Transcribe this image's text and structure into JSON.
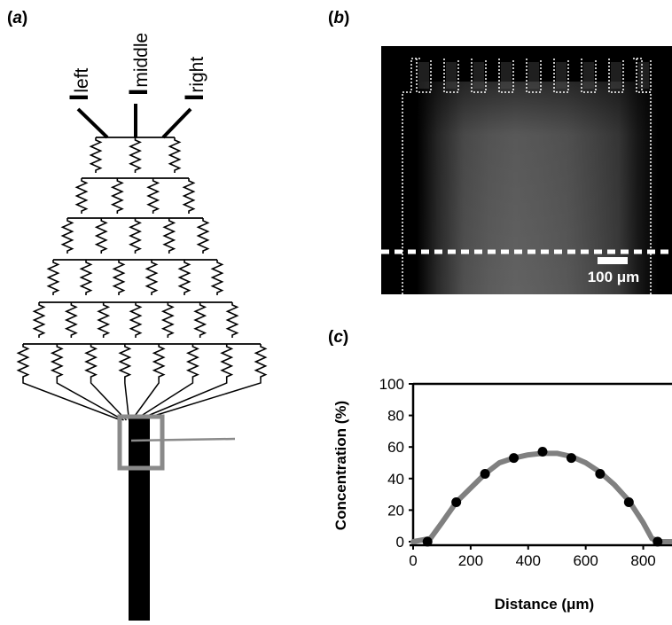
{
  "figure": {
    "panel_a": {
      "label_open": "(",
      "label_letter": "a",
      "label_close": ")",
      "inputs": [
        {
          "base": "I",
          "sub": "left"
        },
        {
          "base": "I",
          "sub": "middle"
        },
        {
          "base": "I",
          "sub": "right"
        }
      ],
      "colors": {
        "network": "#000000",
        "inset_box": "#8a8a8a"
      }
    },
    "panel_b": {
      "label_open": "(",
      "label_letter": "b",
      "label_close": ")",
      "scale_bar_text": "100 μm",
      "colors": {
        "background": "#000000",
        "dotted": "#ffffff"
      }
    },
    "panel_c": {
      "label_open": "(",
      "label_letter": "c",
      "label_close": ")"
    }
  },
  "chart_data": {
    "type": "scatter",
    "xlabel": "Distance (μm)",
    "ylabel": "Concentration (%)",
    "xlim": [
      0,
      900
    ],
    "ylim": [
      0,
      100
    ],
    "x_ticks": [
      0,
      200,
      400,
      600,
      800
    ],
    "y_ticks": [
      0,
      20,
      40,
      60,
      80,
      100
    ],
    "grid": false,
    "series": [
      {
        "style": "line",
        "color": "#808080",
        "x": [
          0,
          30,
          60,
          100,
          150,
          200,
          250,
          300,
          350,
          400,
          450,
          500,
          550,
          600,
          650,
          700,
          750,
          800,
          830,
          860,
          900
        ],
        "values": [
          0,
          1,
          2,
          12,
          25,
          34,
          43,
          50,
          53,
          55,
          56,
          56,
          54,
          50,
          44,
          36,
          26,
          12,
          2,
          0,
          0
        ]
      },
      {
        "style": "markers",
        "color": "#000000",
        "x": [
          50,
          150,
          250,
          350,
          450,
          550,
          650,
          750,
          850
        ],
        "values": [
          0,
          25,
          43,
          53,
          57,
          53,
          43,
          25,
          0
        ]
      }
    ]
  }
}
